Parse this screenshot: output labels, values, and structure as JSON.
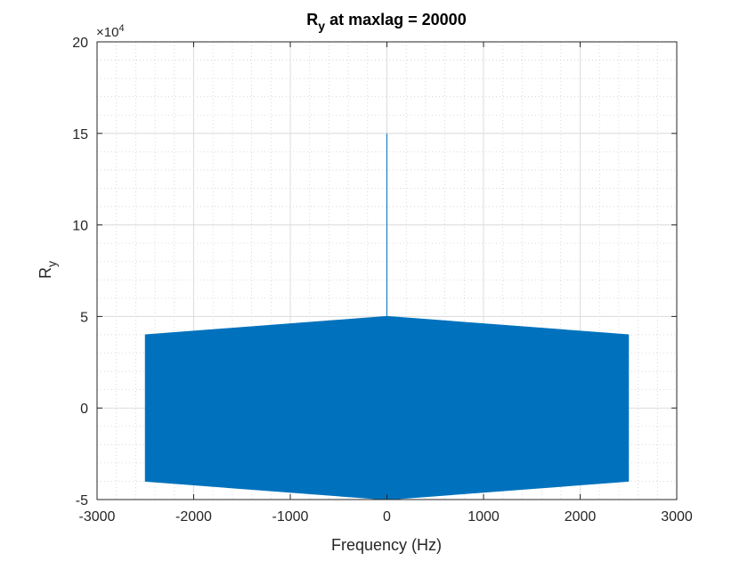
{
  "chart_data": {
    "type": "line",
    "title": {
      "main": "R",
      "sub": "y",
      "rest": " at maxlag = 20000"
    },
    "xlabel": "Frequency (Hz)",
    "ylabel": {
      "main": "R",
      "sub": "y"
    },
    "xlim": [
      -3000,
      3000
    ],
    "ylim": [
      -50000,
      200000
    ],
    "xticks": [
      -3000,
      -2000,
      -1000,
      0,
      1000,
      2000,
      3000
    ],
    "xtick_labels": [
      "-3000",
      "-2000",
      "-1000",
      "0",
      "1000",
      "2000",
      "3000"
    ],
    "yticks": [
      -50000,
      0,
      50000,
      100000,
      150000,
      200000
    ],
    "ytick_labels": [
      "-5",
      "0",
      "5",
      "10",
      "15",
      "20"
    ],
    "y_exponent": {
      "base": "×10",
      "power": "4"
    },
    "grid": true,
    "minor_grid": true,
    "series": [
      {
        "color": "#0072BD",
        "upper_envelope": {
          "x": [
            -2500,
            0,
            2500
          ],
          "y": [
            40000,
            50000,
            40000
          ]
        },
        "lower_envelope": {
          "x": [
            -2500,
            0,
            2500
          ],
          "y": [
            -40000,
            -50000,
            -40000
          ]
        },
        "peak": {
          "x": 0,
          "y": 150000
        }
      }
    ]
  }
}
